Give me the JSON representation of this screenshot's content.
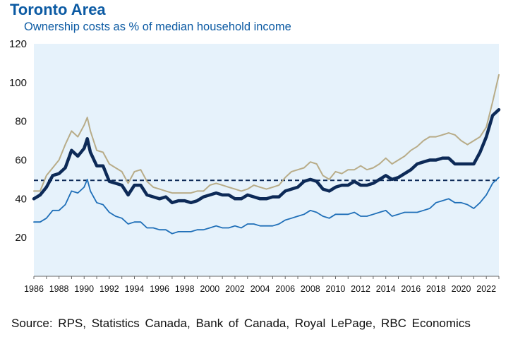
{
  "title": "Toronto Area",
  "subtitle": "Ownership costs as % of median household income",
  "source": "Source: RPS, Statistics Canada, Bank of Canada, Royal LePage, RBC Economics",
  "colors": {
    "title": "#0b5aa3",
    "plot_background": "#e6f2fb",
    "series_top": "#b8ac88",
    "series_mid": "#0d2a57",
    "series_bottom": "#1f6fb8",
    "reference_line": "#0d2a57"
  },
  "chart_data": {
    "type": "line",
    "title": "Toronto Area",
    "subtitle": "Ownership costs as % of median household income",
    "xlim": [
      1986,
      2023
    ],
    "ylim": [
      0,
      120
    ],
    "yticks": [
      20,
      40,
      60,
      80,
      100,
      120
    ],
    "xticks": [
      1986,
      1988,
      1990,
      1992,
      1994,
      1996,
      1998,
      2000,
      2002,
      2004,
      2006,
      2008,
      2010,
      2012,
      2014,
      2016,
      2018,
      2020,
      2022
    ],
    "grid": false,
    "legend": "none",
    "reference_line": {
      "y": 49.5,
      "style": "dashed"
    },
    "series": [
      {
        "key": "top",
        "x": [
          1986,
          1986.5,
          1987,
          1987.5,
          1988,
          1988.5,
          1989,
          1989.5,
          1990,
          1990.25,
          1990.5,
          1991,
          1991.5,
          1992,
          1992.5,
          1993,
          1993.5,
          1994,
          1994.5,
          1995,
          1995.5,
          1996,
          1996.5,
          1997,
          1997.5,
          1998,
          1998.5,
          1999,
          1999.5,
          2000,
          2000.5,
          2001,
          2001.5,
          2002,
          2002.5,
          2003,
          2003.5,
          2004,
          2004.5,
          2005,
          2005.5,
          2006,
          2006.5,
          2007,
          2007.5,
          2008,
          2008.5,
          2009,
          2009.5,
          2010,
          2010.5,
          2011,
          2011.5,
          2012,
          2012.5,
          2013,
          2013.5,
          2014,
          2014.5,
          2015,
          2015.5,
          2016,
          2016.5,
          2017,
          2017.5,
          2018,
          2018.5,
          2019,
          2019.5,
          2020,
          2020.5,
          2021,
          2021.5,
          2022,
          2022.5,
          2023
        ],
        "y": [
          44,
          44,
          52,
          56,
          60,
          68,
          75,
          72,
          78,
          82,
          75,
          65,
          64,
          58,
          56,
          54,
          48,
          54,
          55,
          49,
          46,
          45,
          44,
          43,
          43,
          43,
          43,
          44,
          44,
          47,
          48,
          47,
          46,
          45,
          44,
          45,
          47,
          46,
          45,
          46,
          47,
          51,
          54,
          55,
          56,
          59,
          58,
          52,
          50,
          54,
          53,
          55,
          55,
          57,
          55,
          56,
          58,
          61,
          58,
          60,
          62,
          65,
          67,
          70,
          72,
          72,
          73,
          74,
          73,
          70,
          68,
          70,
          72,
          77,
          90,
          104
        ]
      },
      {
        "key": "mid",
        "x": [
          1986,
          1986.5,
          1987,
          1987.5,
          1988,
          1988.5,
          1989,
          1989.5,
          1990,
          1990.25,
          1990.5,
          1991,
          1991.5,
          1992,
          1992.5,
          1993,
          1993.5,
          1994,
          1994.5,
          1995,
          1995.5,
          1996,
          1996.5,
          1997,
          1997.5,
          1998,
          1998.5,
          1999,
          1999.5,
          2000,
          2000.5,
          2001,
          2001.5,
          2002,
          2002.5,
          2003,
          2003.5,
          2004,
          2004.5,
          2005,
          2005.5,
          2006,
          2006.5,
          2007,
          2007.5,
          2008,
          2008.5,
          2009,
          2009.5,
          2010,
          2010.5,
          2011,
          2011.5,
          2012,
          2012.5,
          2013,
          2013.5,
          2014,
          2014.5,
          2015,
          2015.5,
          2016,
          2016.5,
          2017,
          2017.5,
          2018,
          2018.5,
          2019,
          2019.5,
          2020,
          2020.5,
          2021,
          2021.5,
          2022,
          2022.5,
          2023
        ],
        "y": [
          40,
          42,
          46,
          52,
          53,
          56,
          65,
          62,
          66,
          71,
          64,
          57,
          57,
          49,
          48,
          47,
          42,
          47,
          47,
          42,
          41,
          40,
          41,
          38,
          39,
          39,
          38,
          39,
          41,
          42,
          43,
          42,
          42,
          40,
          40,
          42,
          41,
          40,
          40,
          41,
          41,
          44,
          45,
          46,
          49,
          50,
          49,
          45,
          44,
          46,
          47,
          47,
          49,
          47,
          47,
          48,
          50,
          52,
          50,
          51,
          53,
          55,
          58,
          59,
          60,
          60,
          61,
          61,
          58,
          58,
          58,
          58,
          64,
          72,
          83,
          86
        ]
      },
      {
        "key": "bottom",
        "x": [
          1986,
          1986.5,
          1987,
          1987.5,
          1988,
          1988.5,
          1989,
          1989.5,
          1990,
          1990.25,
          1990.5,
          1991,
          1991.5,
          1992,
          1992.5,
          1993,
          1993.5,
          1994,
          1994.5,
          1995,
          1995.5,
          1996,
          1996.5,
          1997,
          1997.5,
          1998,
          1998.5,
          1999,
          1999.5,
          2000,
          2000.5,
          2001,
          2001.5,
          2002,
          2002.5,
          2003,
          2003.5,
          2004,
          2004.5,
          2005,
          2005.5,
          2006,
          2006.5,
          2007,
          2007.5,
          2008,
          2008.5,
          2009,
          2009.5,
          2010,
          2010.5,
          2011,
          2011.5,
          2012,
          2012.5,
          2013,
          2013.5,
          2014,
          2014.5,
          2015,
          2015.5,
          2016,
          2016.5,
          2017,
          2017.5,
          2018,
          2018.5,
          2019,
          2019.5,
          2020,
          2020.5,
          2021,
          2021.5,
          2022,
          2022.5,
          2023
        ],
        "y": [
          28,
          28,
          30,
          34,
          34,
          37,
          44,
          43,
          46,
          50,
          44,
          38,
          37,
          33,
          31,
          30,
          27,
          28,
          28,
          25,
          25,
          24,
          24,
          22,
          23,
          23,
          23,
          24,
          24,
          25,
          26,
          25,
          25,
          26,
          25,
          27,
          27,
          26,
          26,
          26,
          27,
          29,
          30,
          31,
          32,
          34,
          33,
          31,
          30,
          32,
          32,
          32,
          33,
          31,
          31,
          32,
          33,
          34,
          31,
          32,
          33,
          33,
          33,
          34,
          35,
          38,
          39,
          40,
          38,
          38,
          37,
          35,
          38,
          42,
          48,
          51
        ]
      }
    ]
  }
}
